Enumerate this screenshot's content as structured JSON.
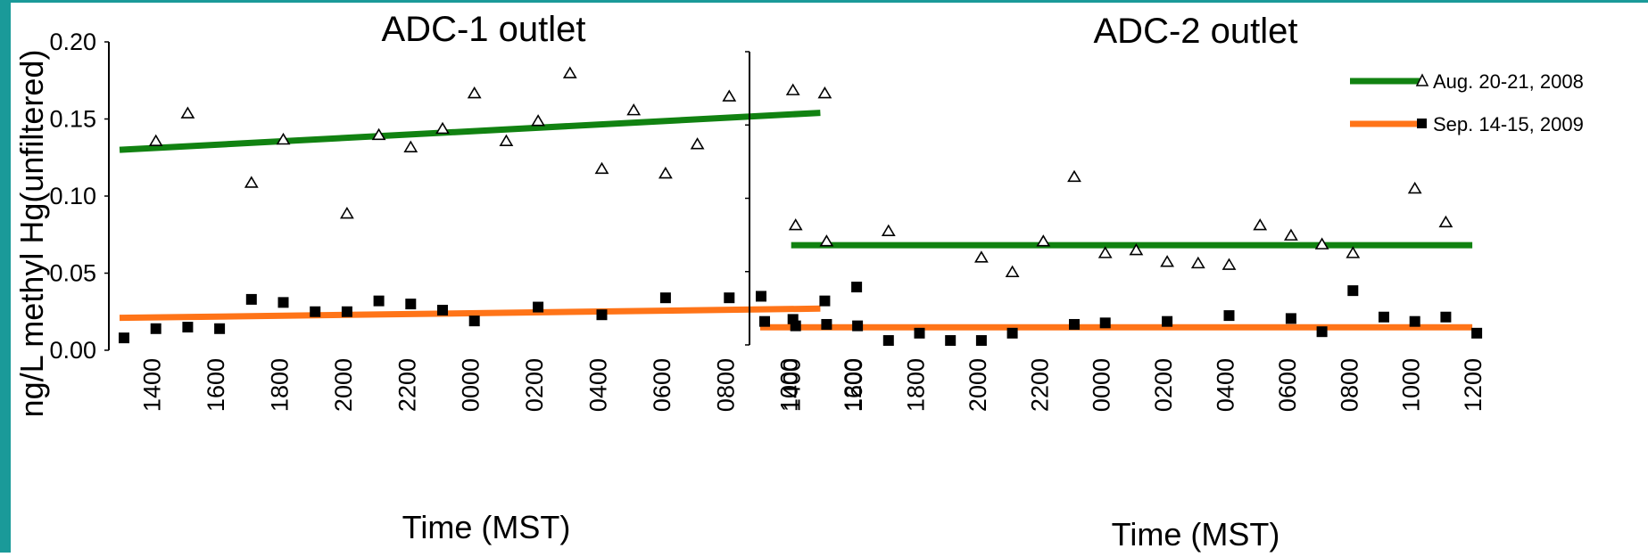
{
  "colors": {
    "frame": "#1a9a99",
    "trend_aug": "#118211",
    "trend_sep": "#ff7418",
    "marker": "#000000"
  },
  "ylabel": "ng/L methyl Hg(unfiltered)",
  "legend": {
    "placement": "top-right",
    "entries": [
      {
        "label": "Aug. 20-21, 2008",
        "marker": "triangle-open",
        "color": "#118211"
      },
      {
        "label": "Sep. 14-15, 2009",
        "marker": "square-filled",
        "color": "#ff7418"
      }
    ]
  },
  "chart_data": [
    {
      "type": "scatter",
      "title": "ADC-1 outlet",
      "xlabel": "Time (MST)",
      "ylabel": "ng/L methyl Hg(unfiltered)",
      "ylim": [
        0,
        0.2
      ],
      "y_ticks": [
        "0.00",
        "0.05",
        "0.10",
        "0.15",
        "0.20"
      ],
      "x_ticks": [
        "1400",
        "1600",
        "1800",
        "2000",
        "2200",
        "0000",
        "0200",
        "0400",
        "0600",
        "0800",
        "1000",
        "1200"
      ],
      "x_note": "hourly sampling from 1300 (day 1) to 1200 (day 2)",
      "x": [
        "1300",
        "1400",
        "1500",
        "1600",
        "1700",
        "1800",
        "1900",
        "2000",
        "2100",
        "2200",
        "2300",
        "0000",
        "0100",
        "0200",
        "0300",
        "0400",
        "0500",
        "0600",
        "0700",
        "0800",
        "0900",
        "1000",
        "1100",
        "1200"
      ],
      "series": [
        {
          "name": "Aug. 20-21, 2008",
          "marker": "triangle-open",
          "points": [
            [
              "1400",
              0.136
            ],
            [
              "1500",
              0.154
            ],
            [
              "1700",
              0.109
            ],
            [
              "1800",
              0.137
            ],
            [
              "2000",
              0.089
            ],
            [
              "2100",
              0.14
            ],
            [
              "2200",
              0.132
            ],
            [
              "2300",
              0.144
            ],
            [
              "0000",
              0.167
            ],
            [
              "0100",
              0.136
            ],
            [
              "0200",
              0.149
            ],
            [
              "0300",
              0.18
            ],
            [
              "0400",
              0.118
            ],
            [
              "0500",
              0.156
            ],
            [
              "0600",
              0.115
            ],
            [
              "0700",
              0.134
            ],
            [
              "0800",
              0.165
            ],
            [
              "1000",
              0.169
            ],
            [
              "1100",
              0.167
            ]
          ],
          "trend": [
            [
              "1300",
              0.13
            ],
            [
              "1100",
              0.154
            ]
          ]
        },
        {
          "name": "Sep. 14-15, 2009",
          "marker": "square-filled",
          "points": [
            [
              "1300",
              0.008
            ],
            [
              "1400",
              0.014
            ],
            [
              "1500",
              0.015
            ],
            [
              "1600",
              0.014
            ],
            [
              "1700",
              0.033
            ],
            [
              "1800",
              0.031
            ],
            [
              "1900",
              0.025
            ],
            [
              "2000",
              0.025
            ],
            [
              "2100",
              0.032
            ],
            [
              "2200",
              0.03
            ],
            [
              "2300",
              0.026
            ],
            [
              "0000",
              0.019
            ],
            [
              "0200",
              0.028
            ],
            [
              "0400",
              0.023
            ],
            [
              "0600",
              0.034
            ],
            [
              "0800",
              0.034
            ],
            [
              "0900",
              0.035
            ],
            [
              "1000",
              0.02
            ],
            [
              "1100",
              0.032
            ],
            [
              "1200",
              0.041
            ]
          ],
          "trend": [
            [
              "1300",
              0.021
            ],
            [
              "1100",
              0.027
            ]
          ]
        }
      ]
    },
    {
      "type": "scatter",
      "title": "ADC-2 outlet",
      "xlabel": "Time (MST)",
      "ylim": [
        0,
        0.2
      ],
      "x_ticks": [
        "1400",
        "1600",
        "1800",
        "2000",
        "2200",
        "0000",
        "0200",
        "0400",
        "0600",
        "0800",
        "1000",
        "1200"
      ],
      "x_note": "hourly sampling from 1300 (day 1) to 1200 (day 2)",
      "x": [
        "1300",
        "1400",
        "1500",
        "1600",
        "1700",
        "1800",
        "1900",
        "2000",
        "2100",
        "2200",
        "2300",
        "0000",
        "0100",
        "0200",
        "0300",
        "0400",
        "0500",
        "0600",
        "0700",
        "0800",
        "0900",
        "1000",
        "1100",
        "1200"
      ],
      "series": [
        {
          "name": "Aug. 20-21, 2008",
          "marker": "triangle-open",
          "points": [
            [
              "1400",
              0.082
            ],
            [
              "1500",
              0.071
            ],
            [
              "1700",
              0.078
            ],
            [
              "2000",
              0.06
            ],
            [
              "2100",
              0.05
            ],
            [
              "2200",
              0.071
            ],
            [
              "2300",
              0.115
            ],
            [
              "0000",
              0.063
            ],
            [
              "0100",
              0.065
            ],
            [
              "0200",
              0.057
            ],
            [
              "0300",
              0.056
            ],
            [
              "0400",
              0.055
            ],
            [
              "0500",
              0.082
            ],
            [
              "0600",
              0.075
            ],
            [
              "0700",
              0.069
            ],
            [
              "0800",
              0.063
            ],
            [
              "1000",
              0.107
            ],
            [
              "1100",
              0.084
            ]
          ],
          "trend": [
            [
              "1400",
              0.068
            ],
            [
              "1200",
              0.068
            ]
          ]
        },
        {
          "name": "Sep. 14-15, 2009",
          "marker": "square-filled",
          "points": [
            [
              "1300",
              0.016
            ],
            [
              "1400",
              0.013
            ],
            [
              "1500",
              0.014
            ],
            [
              "1600",
              0.013
            ],
            [
              "1700",
              0.003
            ],
            [
              "1800",
              0.008
            ],
            [
              "1900",
              0.003
            ],
            [
              "2000",
              0.003
            ],
            [
              "2100",
              0.008
            ],
            [
              "2300",
              0.014
            ],
            [
              "0000",
              0.015
            ],
            [
              "0200",
              0.016
            ],
            [
              "0400",
              0.02
            ],
            [
              "0600",
              0.018
            ],
            [
              "0700",
              0.009
            ],
            [
              "0800",
              0.037
            ],
            [
              "0900",
              0.019
            ],
            [
              "1000",
              0.016
            ],
            [
              "1100",
              0.019
            ],
            [
              "1200",
              0.008
            ]
          ],
          "trend": [
            [
              "1300",
              0.012
            ],
            [
              "1200",
              0.012
            ]
          ]
        }
      ]
    }
  ]
}
